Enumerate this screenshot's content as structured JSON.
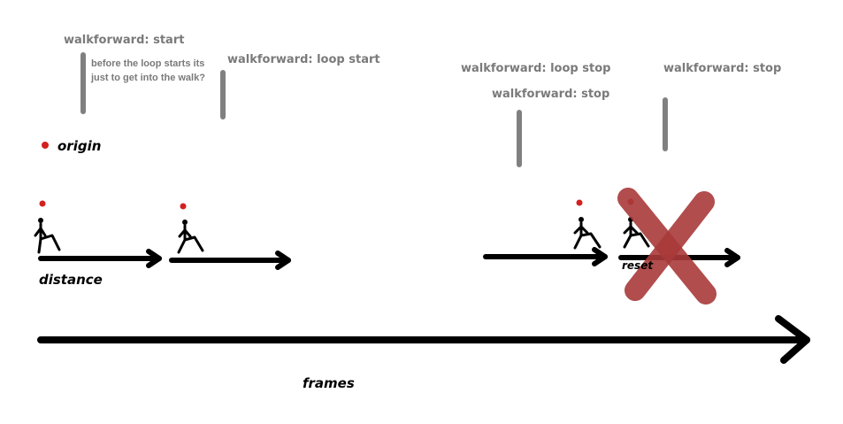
{
  "labels": {
    "walk_start": "walkforward: start",
    "loop_start": "walkforward: loop start",
    "loop_stop": "walkforward: loop stop",
    "stop_a": "walkforward: stop",
    "stop_b": "walkforward: stop",
    "note": "before the loop starts its just to get into the walk?",
    "origin": "origin",
    "distance": "distance",
    "reset": "reset",
    "frames": "frames"
  },
  "colors": {
    "marker": "#808080",
    "arrow": "#000000",
    "origin_dot": "#d42020",
    "cross": "#a83a3a",
    "label": "#7a7a7a"
  }
}
